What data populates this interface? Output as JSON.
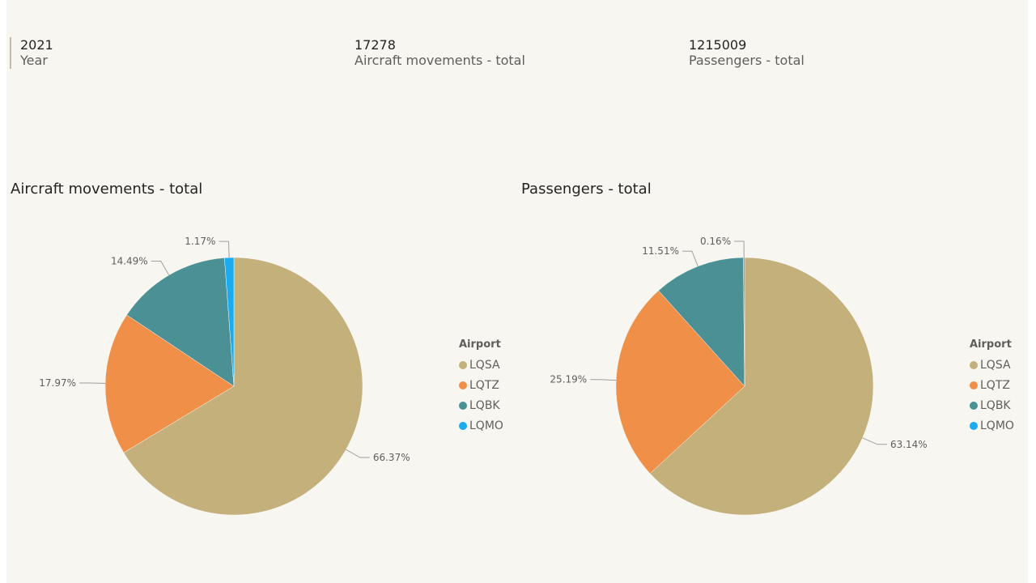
{
  "kpis": [
    {
      "value": "2021",
      "label": "Year"
    },
    {
      "value": "17278",
      "label": "Aircraft movements - total"
    },
    {
      "value": "1215009",
      "label": "Passengers - total"
    }
  ],
  "legend_title": "Airport",
  "colors": {
    "LQSA": "#c4b07b",
    "LQTZ": "#f08f47",
    "LQBK": "#4a9094",
    "LQMO": "#1aabf0"
  },
  "chart_data": [
    {
      "type": "pie",
      "title": "Aircraft movements - total",
      "legend": "right",
      "categories": [
        "LQSA",
        "LQTZ",
        "LQBK",
        "LQMO"
      ],
      "values": [
        66.37,
        17.97,
        14.49,
        1.17
      ],
      "labels": [
        "66.37%",
        "17.97%",
        "14.49%",
        "1.17%"
      ]
    },
    {
      "type": "pie",
      "title": "Passengers - total",
      "legend": "right",
      "categories": [
        "LQSA",
        "LQTZ",
        "LQBK",
        "LQMO"
      ],
      "values": [
        63.14,
        25.19,
        11.51,
        0.16
      ],
      "labels": [
        "63.14%",
        "25.19%",
        "11.51%",
        "0.16%"
      ]
    }
  ]
}
